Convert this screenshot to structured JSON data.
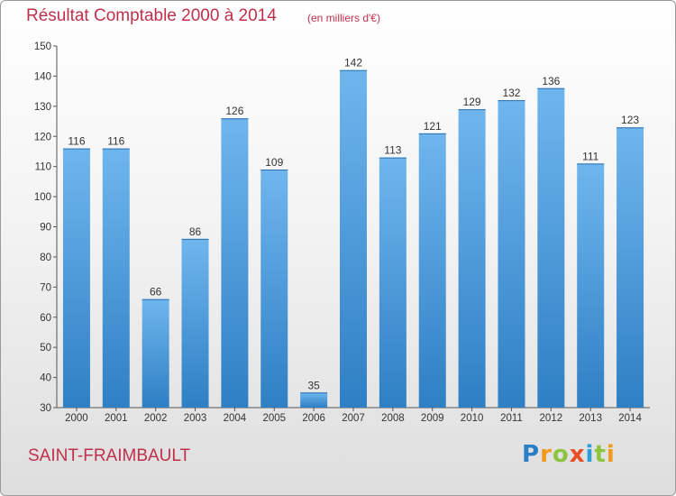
{
  "header": {
    "title": "Résultat Comptable 2000 à 2014",
    "subtitle": "(en milliers d'€)"
  },
  "footer": {
    "city": "SAINT-FRAIMBAULT",
    "logo_letters": [
      {
        "ch": "P",
        "color": "#2a7fc6"
      },
      {
        "ch": "r",
        "color": "#f29a1e"
      },
      {
        "ch": "o",
        "color": "#8cc63f"
      },
      {
        "ch": "x",
        "color": "#e94e24"
      },
      {
        "ch": "i",
        "color": "#2a9fd8"
      },
      {
        "ch": "t",
        "color": "#8cc63f"
      },
      {
        "ch": "i",
        "color": "#f29a1e"
      }
    ]
  },
  "colors": {
    "bar_light": "#6fb6ee",
    "bar_dark": "#2e7fc4",
    "title": "#c0304a"
  },
  "chart_data": {
    "type": "bar",
    "title": "Résultat Comptable 2000 à 2014",
    "subtitle": "(en milliers d'€)",
    "categories": [
      "2000",
      "2001",
      "2002",
      "2003",
      "2004",
      "2005",
      "2006",
      "2007",
      "2008",
      "2009",
      "2010",
      "2011",
      "2012",
      "2013",
      "2014"
    ],
    "values": [
      116,
      116,
      66,
      86,
      126,
      109,
      35,
      142,
      113,
      121,
      129,
      132,
      136,
      111,
      123
    ],
    "ylim": [
      30,
      150
    ],
    "yticks": [
      30,
      40,
      50,
      60,
      70,
      80,
      90,
      100,
      110,
      120,
      130,
      140,
      150
    ],
    "grid": false,
    "data_labels": true
  }
}
